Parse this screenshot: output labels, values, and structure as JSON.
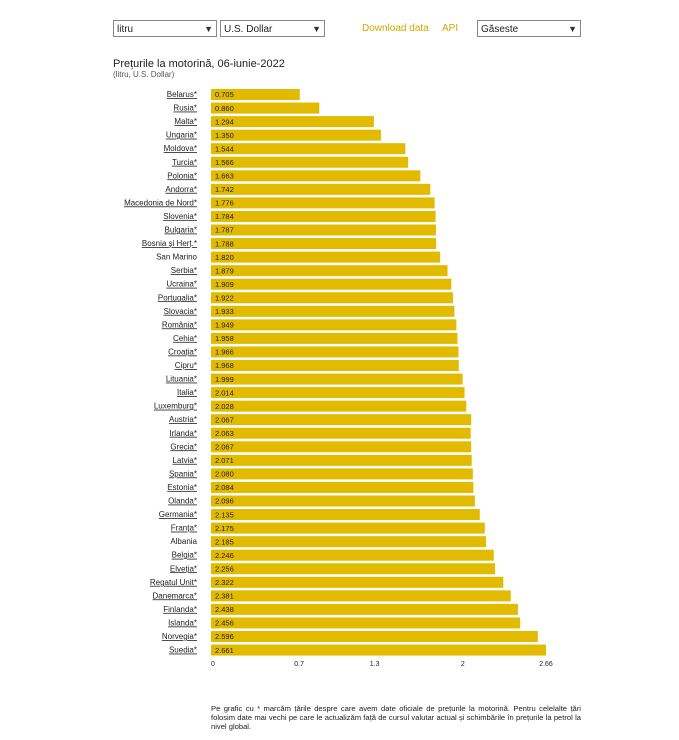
{
  "controls": {
    "unit_select": "litru",
    "currency_select": "U.S. Dollar",
    "download_label": "Download data",
    "api_label": "API",
    "search_select": "Găseste"
  },
  "colors": {
    "bar": "#e2bb00",
    "link": "#d4a600"
  },
  "chart_data": {
    "type": "bar",
    "orientation": "horizontal",
    "title": "Prețurile la motorină, 06-iunie-2022",
    "subtitle": "(litru, U.S. Dollar)",
    "categories": [
      "Belarus*",
      "Rusia*",
      "Malta*",
      "Ungaria*",
      "Moldova*",
      "Turcia*",
      "Polonia*",
      "Andorra*",
      "Macedonia de Nord*",
      "Slovenia*",
      "Bulgaria*",
      "Bosnia și Herț.*",
      "San Marino",
      "Serbia*",
      "Ucraina*",
      "Portugalia*",
      "Slovacia*",
      "România*",
      "Cehia*",
      "Croația*",
      "Cipru*",
      "Lituania*",
      "Italia*",
      "Luxemburg*",
      "Austria*",
      "Irlanda*",
      "Grecia*",
      "Latvia*",
      "Spania*",
      "Estonia*",
      "Olanda*",
      "Germania*",
      "Franța*",
      "Albania",
      "Belgia*",
      "Elveția*",
      "Regatul Unit*",
      "Danemarca*",
      "Finlanda*",
      "Islanda*",
      "Norvegia*",
      "Suedia*"
    ],
    "values": [
      0.705,
      0.86,
      1.294,
      1.35,
      1.544,
      1.566,
      1.663,
      1.742,
      1.776,
      1.784,
      1.787,
      1.788,
      1.82,
      1.879,
      1.909,
      1.922,
      1.933,
      1.949,
      1.958,
      1.966,
      1.968,
      1.999,
      2.014,
      2.028,
      2.067,
      2.063,
      2.067,
      2.071,
      2.08,
      2.084,
      2.096,
      2.135,
      2.175,
      2.185,
      2.246,
      2.256,
      2.322,
      2.381,
      2.438,
      2.456,
      2.596,
      2.661
    ],
    "value_labels": [
      "0.705",
      "0.860",
      "1.294",
      "1.350",
      "1.544",
      "1.566",
      "1.663",
      "1.742",
      "1.776",
      "1.784",
      "1.787",
      "1.788",
      "1.820",
      "1.879",
      "1.909",
      "1.922",
      "1.933",
      "1.949",
      "1.958",
      "1.966",
      "1.968",
      "1.999",
      "2.014",
      "2.028",
      "2.067",
      "2.063",
      "2.067",
      "2.071",
      "2.080",
      "2.084",
      "2.096",
      "2.135",
      "2.175",
      "2.185",
      "2.246",
      "2.256",
      "2.322",
      "2.381",
      "2.438",
      "2.456",
      "2.596",
      "2.661"
    ],
    "x_ticks": [
      "0",
      "0.7",
      "1.3",
      "2",
      "2.66"
    ],
    "xlim": [
      0,
      2.661
    ],
    "grid": false
  },
  "footnote": "Pe grafic cu * marcăm țările despre care avem date oficiale de prețurile la motorină. Pentru celelalte țări folosim date mai vechi pe care le actualizăm față de cursul valutar actual și schimbările în prețurile la petrol la nivel global."
}
